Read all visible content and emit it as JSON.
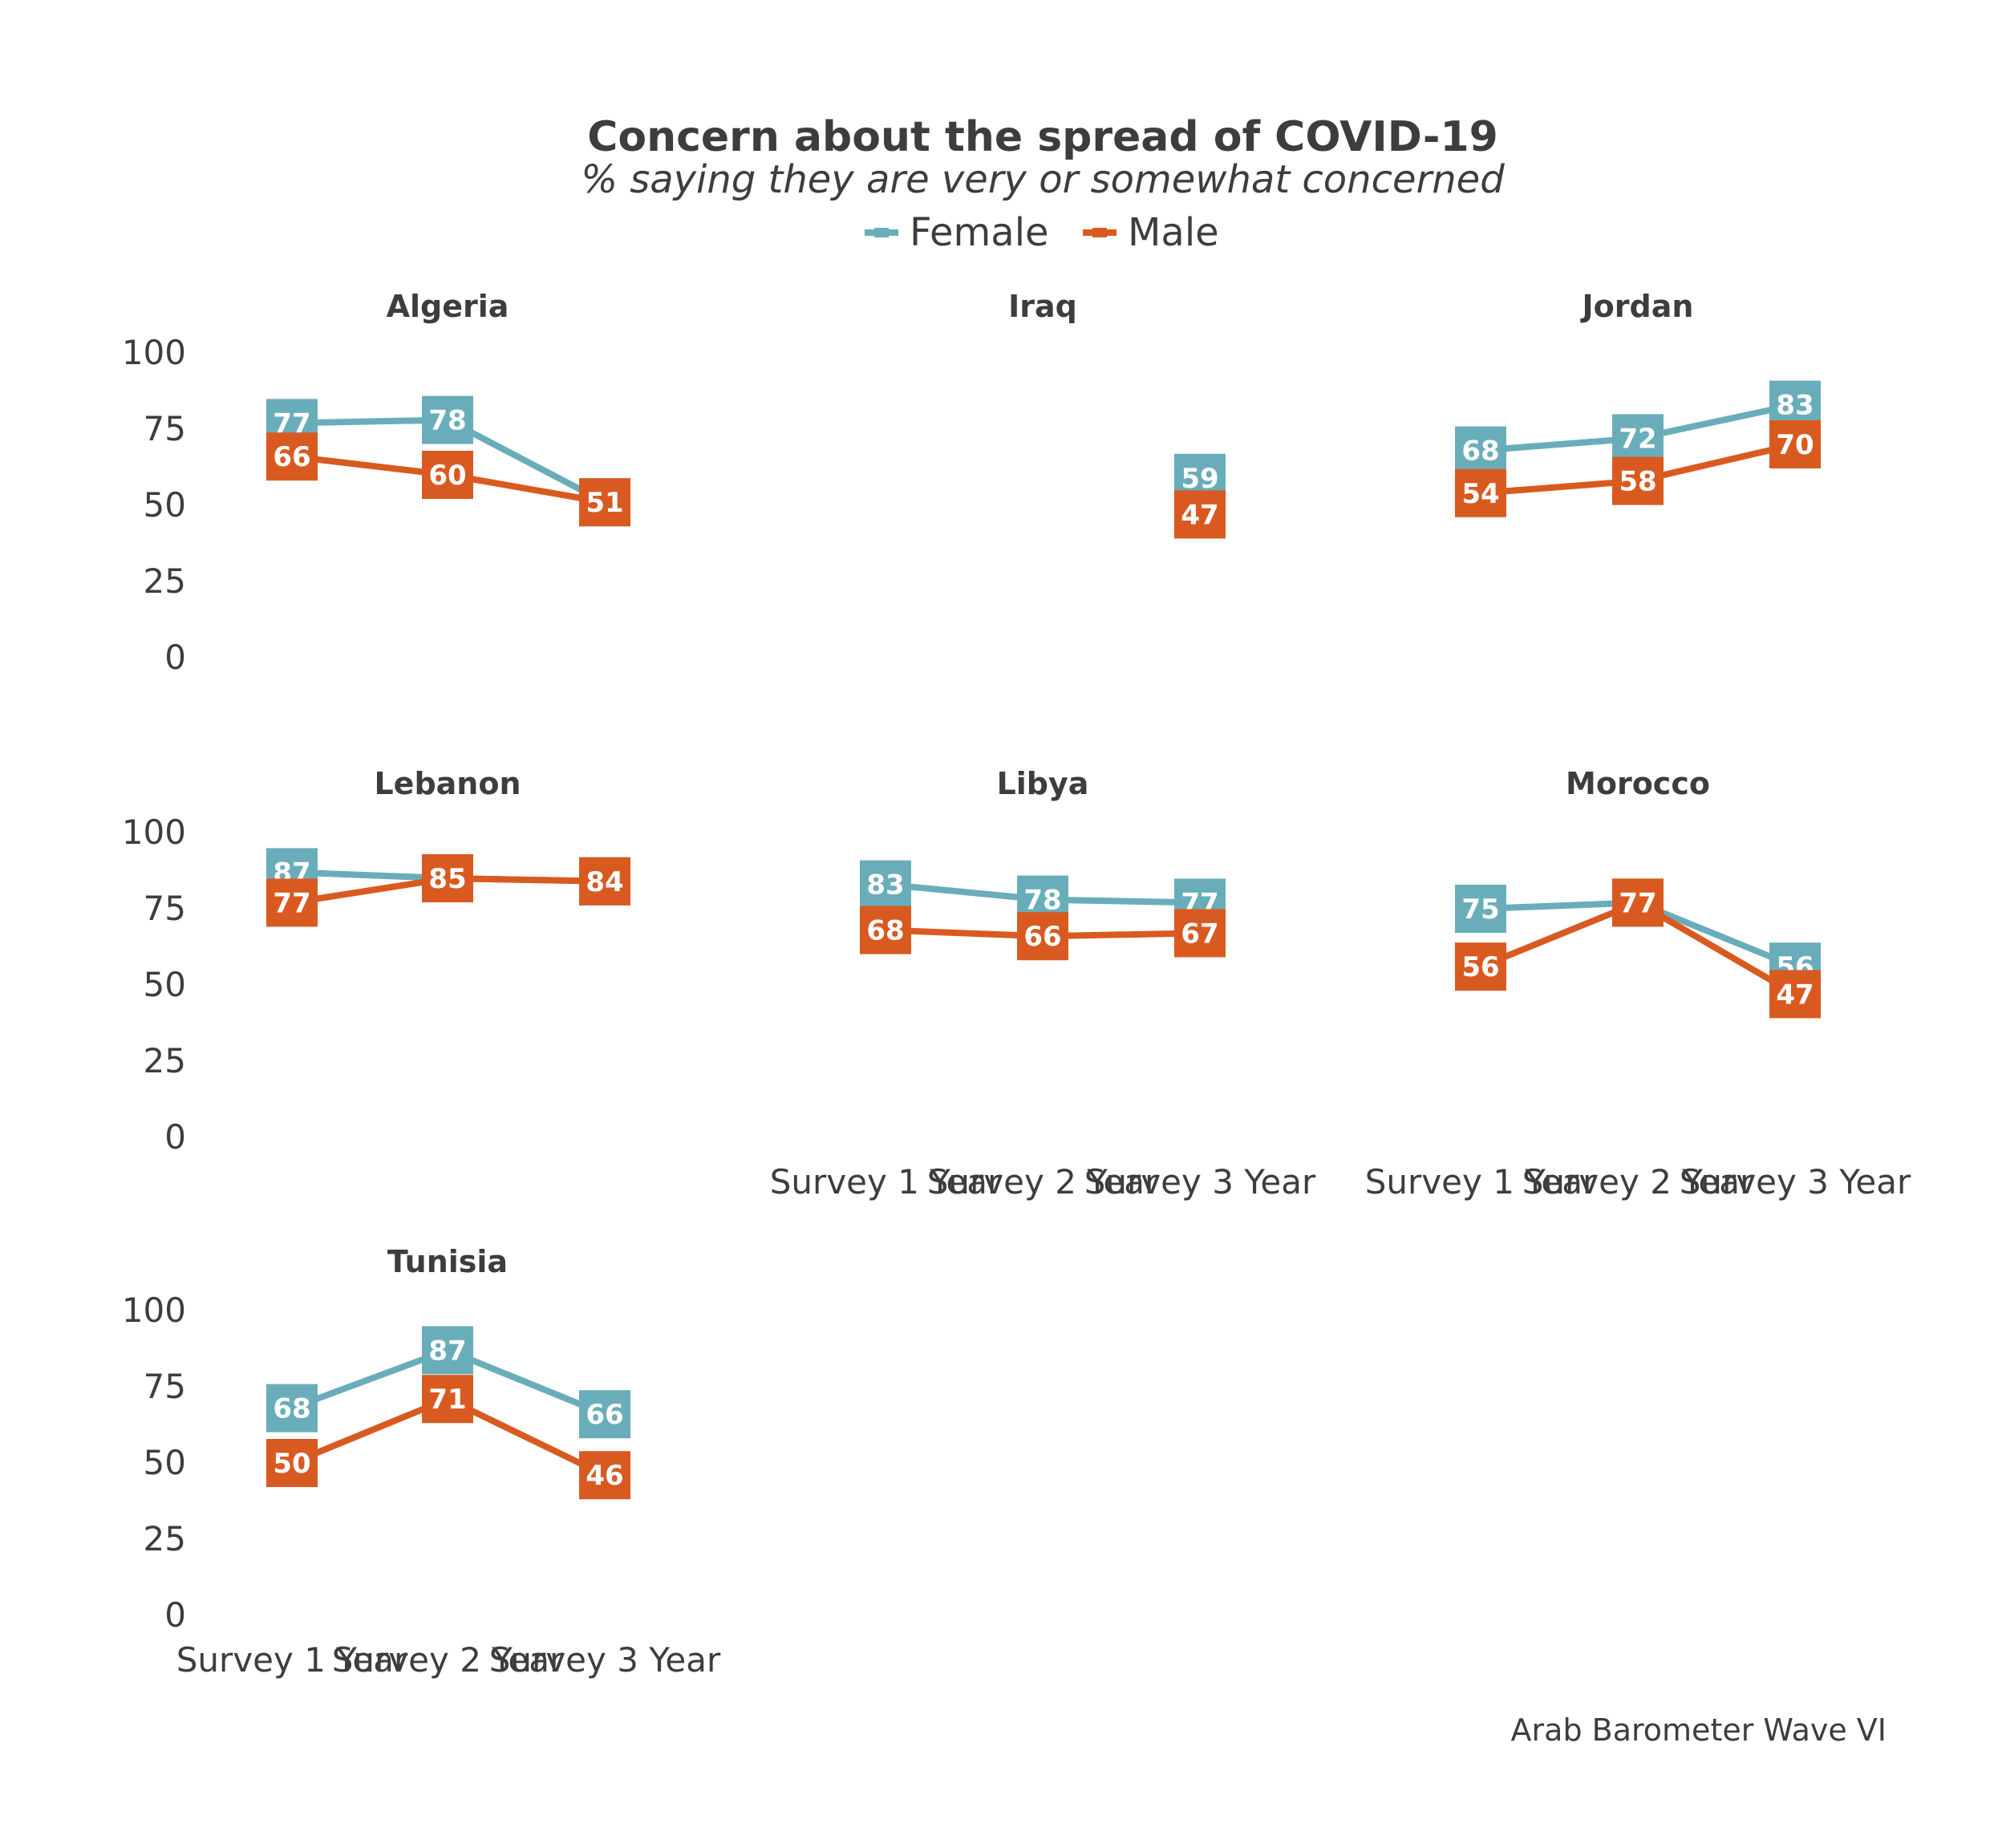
{
  "chart_data": {
    "type": "line",
    "title": "Concern about the spread of COVID-19",
    "subtitle": "% saying they are very or somewhat concerned",
    "caption": "Arab Barometer Wave VI",
    "ylim": [
      0,
      100
    ],
    "yticks": [
      0,
      25,
      50,
      75,
      100
    ],
    "categories": [
      "Survey 1 Year",
      "Survey 2 Year",
      "Survey 3 Year"
    ],
    "legend": [
      {
        "name": "Female",
        "color": "#6aadba"
      },
      {
        "name": "Male",
        "color": "#d95a20"
      }
    ],
    "panels": [
      {
        "country": "Algeria",
        "female": [
          77,
          78,
          51
        ],
        "male": [
          66,
          60,
          51
        ]
      },
      {
        "country": "Iraq",
        "female": [
          null,
          null,
          59
        ],
        "male": [
          null,
          null,
          47
        ]
      },
      {
        "country": "Jordan",
        "female": [
          68,
          72,
          83
        ],
        "male": [
          54,
          58,
          70
        ]
      },
      {
        "country": "Lebanon",
        "female": [
          87,
          85,
          84
        ],
        "male": [
          77,
          85,
          84
        ]
      },
      {
        "country": "Libya",
        "female": [
          83,
          78,
          77
        ],
        "male": [
          68,
          66,
          67
        ]
      },
      {
        "country": "Morocco",
        "female": [
          75,
          77,
          56
        ],
        "male": [
          56,
          77,
          47
        ]
      },
      {
        "country": "Tunisia",
        "female": [
          68,
          87,
          66
        ],
        "male": [
          50,
          71,
          46
        ]
      }
    ]
  }
}
